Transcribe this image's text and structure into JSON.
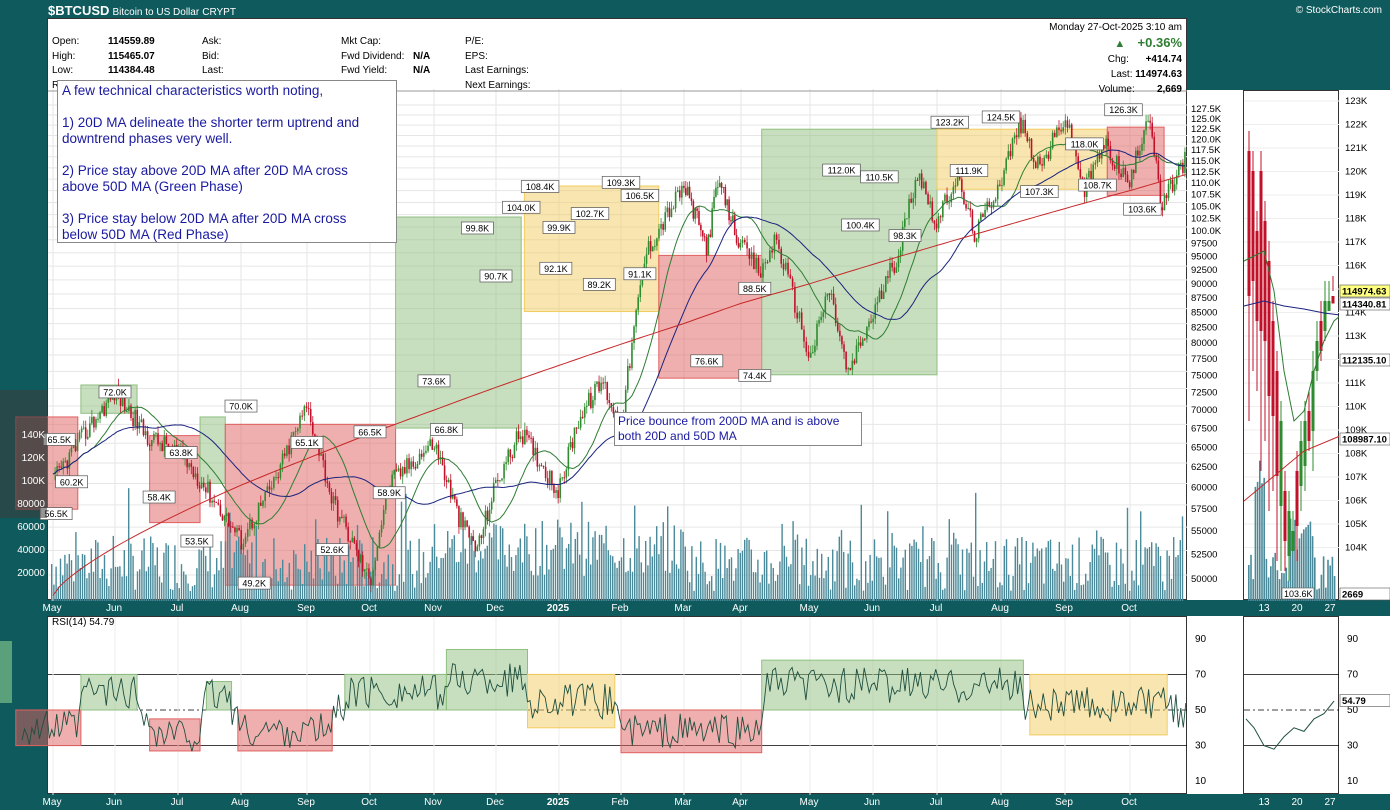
{
  "header": {
    "symbol": "$BTCUSD",
    "name": "Bitcoin to US Dollar",
    "type": "CRYPT",
    "watermark": "© StockCharts.com",
    "datetime": "Monday  27-Oct-2025  3:10 am",
    "change_pct": "+0.36%",
    "chg_label": "Chg:",
    "chg": "+414.74",
    "last_label": "Last:",
    "last": "114974.63",
    "volume_label": "Volume:",
    "volume": "2,669",
    "open_label": "Open:",
    "open": "114559.89",
    "high_label": "High:",
    "high": "115465.07",
    "low_label": "Low:",
    "low": "114384.48",
    "ask_label": "Ask:",
    "bid_label": "Bid:",
    "lastq_label": "Last:",
    "mktcap_label": "Mkt Cap:",
    "fwd_div_label": "Fwd Dividend:",
    "fwd_div": "N/A",
    "fwd_yield_label": "Fwd Yield:",
    "fwd_yield": "N/A",
    "pe_label": "P/E:",
    "eps_label": "EPS:",
    "last_earn_label": "Last Earnings:",
    "next_earn_label": "Next Earnings:",
    "extra_letter": "R"
  },
  "notes": {
    "main_lines": [
      "A few technical characteristics worth noting,",
      "",
      "1) 20D MA delineate the shorter term uptrend and",
      "downtrend phases very well.",
      "",
      "2) Price stay above 20D MA after 20D MA cross",
      "above 50D MA (Green Phase)",
      "",
      "3) Price stay below 20D MA after 20D MA cross",
      "below 50D MA (Red Phase)"
    ],
    "bounce_lines": [
      "Price bounce from 200D MA and is above",
      "both 20D and 50D MA"
    ]
  },
  "rsi": {
    "label": "RSI(14) 54.79",
    "last": "54.79",
    "ticks": [
      "90",
      "70",
      "50",
      "30",
      "10"
    ]
  },
  "colors": {
    "green_phase": "#8fbf80",
    "red_phase": "#e06060",
    "yellow_phase": "#f2cc60",
    "ma20": "#2e7d32",
    "ma50": "#1a237e",
    "ma200": "#c62828",
    "volume": "#4a8a9a",
    "candle_up": "#2e8b2e",
    "candle_down": "#c0102a",
    "panel_bg": "#0f5a5c"
  },
  "chart_data": {
    "type": "line",
    "title": "$BTCUSD Bitcoin to US Dollar",
    "x_axis_months": [
      "May",
      "Jun",
      "Jul",
      "Aug",
      "Sep",
      "Oct",
      "Nov",
      "Dec",
      "2025",
      "Feb",
      "Mar",
      "Apr",
      "May",
      "Jun",
      "Jul",
      "Aug",
      "Sep",
      "Oct"
    ],
    "y_ticks_right": [
      "127.5K",
      "125.0K",
      "122.5K",
      "120.0K",
      "117.5K",
      "115.0K",
      "112.5K",
      "110.0K",
      "107.5K",
      "105.0K",
      "102.5K",
      "100.0K",
      "97500",
      "95000",
      "92500",
      "90000",
      "87500",
      "85000",
      "82500",
      "80000",
      "77500",
      "75000",
      "72500",
      "70000",
      "67500",
      "65000",
      "62500",
      "60000",
      "57500",
      "55000",
      "52500",
      "50000"
    ],
    "volume_ticks_left": [
      "140K",
      "120K",
      "100K",
      "80000",
      "60000",
      "40000",
      "20000"
    ],
    "ylim": [
      47000,
      128500
    ],
    "price_series": {
      "name": "BTCUSD",
      "x": [
        0,
        1,
        1.5,
        2,
        2.3,
        3,
        3.5,
        4,
        4.4,
        5,
        5.3,
        6,
        6.4,
        6.7,
        7,
        7.4,
        8,
        8.3,
        8.7,
        9,
        9.4,
        9.8,
        10,
        10.4,
        10.6,
        11,
        11.3,
        11.5,
        12,
        12.3,
        12.6,
        13,
        13.4,
        13.7,
        14,
        14.3,
        14.6,
        15,
        15.3,
        15.6,
        16,
        16.3,
        16.6,
        17,
        17.3,
        17.5,
        17.9
      ],
      "y": [
        60200,
        72000,
        66000,
        63800,
        61000,
        53500,
        60000,
        70000,
        58000,
        49200,
        60000,
        65100,
        56000,
        52600,
        60000,
        66500,
        58900,
        68000,
        73600,
        66800,
        95000,
        104000,
        108400,
        96000,
        109300,
        96000,
        91100,
        98000,
        76600,
        88500,
        74400,
        84000,
        95000,
        112000,
        100400,
        110500,
        98300,
        110000,
        123200,
        111900,
        124500,
        107300,
        118000,
        108700,
        126300,
        103600,
        114974.63
      ]
    },
    "labels": [
      {
        "text": "65.5K",
        "x": 0.1,
        "y": 65500
      },
      {
        "text": "60.2K",
        "x": 0.3,
        "y": 60200
      },
      {
        "text": "56.5K",
        "x": 0.05,
        "y": 56500
      },
      {
        "text": "72.0K",
        "x": 1.0,
        "y": 72000
      },
      {
        "text": "63.8K",
        "x": 2.05,
        "y": 63800
      },
      {
        "text": "58.4K",
        "x": 1.7,
        "y": 58400
      },
      {
        "text": "53.5K",
        "x": 2.3,
        "y": 53500
      },
      {
        "text": "70.0K",
        "x": 3.0,
        "y": 70000
      },
      {
        "text": "65.1K",
        "x": 4.0,
        "y": 65100
      },
      {
        "text": "49.2K",
        "x": 3.2,
        "y": 49200
      },
      {
        "text": "52.6K",
        "x": 4.4,
        "y": 52600
      },
      {
        "text": "66.5K",
        "x": 5.0,
        "y": 66500
      },
      {
        "text": "58.9K",
        "x": 5.3,
        "y": 58900
      },
      {
        "text": "73.6K",
        "x": 6.0,
        "y": 73600
      },
      {
        "text": "66.8K",
        "x": 6.2,
        "y": 66800
      },
      {
        "text": "99.8K",
        "x": 6.7,
        "y": 99800
      },
      {
        "text": "90.7K",
        "x": 7.0,
        "y": 90700
      },
      {
        "text": "104.0K",
        "x": 7.4,
        "y": 104000
      },
      {
        "text": "108.4K",
        "x": 7.7,
        "y": 108400
      },
      {
        "text": "99.9K",
        "x": 8.0,
        "y": 99900
      },
      {
        "text": "92.1K",
        "x": 7.95,
        "y": 92100
      },
      {
        "text": "102.7K",
        "x": 8.5,
        "y": 102700
      },
      {
        "text": "109.3K",
        "x": 9.0,
        "y": 109300
      },
      {
        "text": "106.5K",
        "x": 9.3,
        "y": 106500
      },
      {
        "text": "89.2K",
        "x": 8.65,
        "y": 89200
      },
      {
        "text": "91.1K",
        "x": 9.3,
        "y": 91100
      },
      {
        "text": "88.5K",
        "x": 11.2,
        "y": 88500
      },
      {
        "text": "76.6K",
        "x": 10.4,
        "y": 76600
      },
      {
        "text": "74.4K",
        "x": 11.2,
        "y": 74400
      },
      {
        "text": "112.0K",
        "x": 12.5,
        "y": 112000
      },
      {
        "text": "110.5K",
        "x": 13.1,
        "y": 110500
      },
      {
        "text": "100.4K",
        "x": 12.8,
        "y": 100400
      },
      {
        "text": "98.3K",
        "x": 13.5,
        "y": 98300
      },
      {
        "text": "123.2K",
        "x": 14.2,
        "y": 123200
      },
      {
        "text": "124.5K",
        "x": 15.0,
        "y": 124500
      },
      {
        "text": "111.9K",
        "x": 14.5,
        "y": 111900
      },
      {
        "text": "118.0K",
        "x": 16.3,
        "y": 118000
      },
      {
        "text": "107.3K",
        "x": 15.6,
        "y": 107300
      },
      {
        "text": "108.7K",
        "x": 16.5,
        "y": 108700
      },
      {
        "text": "126.3K",
        "x": 16.9,
        "y": 126300
      },
      {
        "text": "103.6K",
        "x": 17.2,
        "y": 103600
      }
    ],
    "phases": [
      {
        "type": "red",
        "x0": -0.6,
        "x1": 0.4,
        "y0": 57000,
        "y1": 68500
      },
      {
        "type": "green",
        "x0": 0.45,
        "x1": 1.35,
        "y0": 69000,
        "y1": 73000
      },
      {
        "type": "red",
        "x0": 1.55,
        "x1": 2.35,
        "y0": 55500,
        "y1": 66000
      },
      {
        "type": "green",
        "x0": 2.35,
        "x1": 2.75,
        "y0": 60000,
        "y1": 68500
      },
      {
        "type": "red",
        "x0": 2.75,
        "x1": 5.4,
        "y0": 49000,
        "y1": 67500
      },
      {
        "type": "green",
        "x0": 5.4,
        "x1": 7.4,
        "y0": 67000,
        "y1": 102000
      },
      {
        "type": "yellow",
        "x0": 7.45,
        "x1": 9.6,
        "y0": 84500,
        "y1": 108500
      },
      {
        "type": "red",
        "x0": 9.6,
        "x1": 11.3,
        "y0": 74000,
        "y1": 94500
      },
      {
        "type": "green",
        "x0": 11.3,
        "x1": 14.0,
        "y0": 74500,
        "y1": 121500
      },
      {
        "type": "yellow",
        "x0": 14.0,
        "x1": 16.65,
        "y0": 107800,
        "y1": 121500
      },
      {
        "type": "red",
        "x0": 16.65,
        "x1": 17.55,
        "y0": 106500,
        "y1": 122000
      }
    ]
  },
  "mini": {
    "ticks": [
      "123K",
      "122K",
      "121K",
      "120K",
      "119K",
      "118K",
      "117K",
      "116K",
      "115K",
      "114K",
      "113K",
      "112K",
      "111K",
      "110K",
      "109K",
      "108K",
      "107K",
      "106K",
      "105K",
      "104K"
    ],
    "x_labels": [
      "13",
      "20",
      "27"
    ],
    "badges": {
      "last": "114974.63",
      "ma50": "114340.81",
      "ma20": "112135.10",
      "ma200": "108987.10",
      "vol": "2669",
      "low": "103.6K"
    }
  }
}
